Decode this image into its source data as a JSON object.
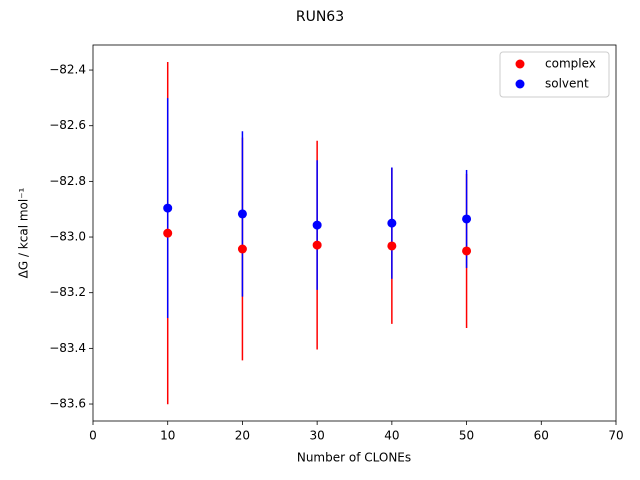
{
  "chart_data": {
    "type": "errorbar-scatter",
    "title": "RUN63",
    "xlabel": "Number of CLONEs",
    "ylabel": "ΔG / kcal mol⁻¹",
    "x": [
      10,
      20,
      30,
      40,
      50
    ],
    "series": [
      {
        "name": "complex",
        "color": "#ff0000",
        "values": [
          -82.986,
          -83.043,
          -83.029,
          -83.032,
          -83.05
        ],
        "errors": [
          0.615,
          0.4,
          0.375,
          0.28,
          0.277
        ]
      },
      {
        "name": "solvent",
        "color": "#0000ff",
        "values": [
          -82.896,
          -82.917,
          -82.957,
          -82.95,
          -82.935
        ],
        "errors": [
          0.395,
          0.297,
          0.233,
          0.2,
          0.176
        ]
      }
    ],
    "xlim": [
      0,
      70
    ],
    "xticks": [
      0,
      10,
      20,
      30,
      40,
      50,
      60,
      70
    ],
    "ylim": [
      -83.661,
      -82.31
    ],
    "yticks": [
      {
        "value": -83.6,
        "label": "−83.6"
      },
      {
        "value": -83.4,
        "label": "−83.4"
      },
      {
        "value": -83.2,
        "label": "−83.2"
      },
      {
        "value": -83.0,
        "label": "−83.0"
      },
      {
        "value": -82.8,
        "label": "−82.8"
      },
      {
        "value": -82.6,
        "label": "−82.6"
      },
      {
        "value": -82.4,
        "label": "−82.4"
      }
    ],
    "legend": "upper right"
  }
}
